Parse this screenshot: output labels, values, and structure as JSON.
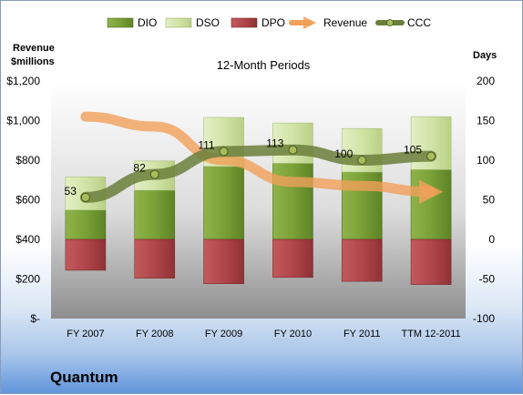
{
  "company": "Quantum",
  "chart_data": {
    "type": "bar",
    "title": "12-Month Periods",
    "left_axis_label": [
      "Revenue",
      "$millions"
    ],
    "right_axis_label": "Days",
    "categories": [
      "FY 2007",
      "FY 2008",
      "FY 2009",
      "FY 2010",
      "FY 2011",
      "TTM 12-2011"
    ],
    "left_axis": {
      "ylim": [
        0,
        1200
      ],
      "ticks": [
        0,
        200,
        400,
        600,
        800,
        1000,
        1200
      ],
      "tick_labels": [
        "$-",
        "$200",
        "$400",
        "$600",
        "$800",
        "$1,000",
        "$1,200"
      ]
    },
    "right_axis": {
      "ylim": [
        -100,
        200
      ],
      "ticks": [
        -100,
        -50,
        0,
        50,
        100,
        150,
        200
      ],
      "tick_labels": [
        "-100",
        "-50",
        "0",
        "50",
        "100",
        "150",
        "200"
      ]
    },
    "stacked_series": [
      {
        "name": "DIO",
        "color": "#7ea33a",
        "values": [
          37,
          62,
          92,
          96,
          85,
          88
        ]
      },
      {
        "name": "DSO",
        "color": "#d3e5aa",
        "values": [
          42,
          37,
          62,
          51,
          55,
          67
        ]
      },
      {
        "name": "DPO",
        "color": "#b4484b",
        "values": [
          -39,
          -49,
          -56,
          -48,
          -53,
          -57
        ]
      }
    ],
    "line_series": [
      {
        "name": "Revenue",
        "axis": "left",
        "color": "#f0a05a",
        "values": [
          1020,
          970,
          800,
          690,
          670,
          640
        ]
      },
      {
        "name": "CCC",
        "axis": "right",
        "color": "#6b7f3b",
        "values": [
          53,
          82,
          111,
          113,
          100,
          105
        ],
        "labels": [
          "53",
          "82",
          "111",
          "113",
          "100",
          "105"
        ]
      }
    ],
    "legend": {
      "placement": "top",
      "entries": [
        "DIO",
        "DSO",
        "DPO",
        "Revenue",
        "CCC"
      ]
    },
    "grid": false
  }
}
